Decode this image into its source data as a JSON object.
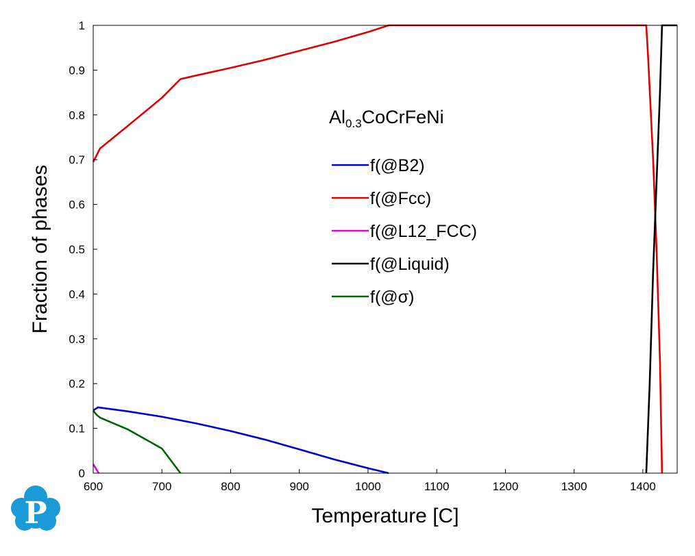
{
  "chart_data": {
    "type": "line",
    "xlabel": "Temperature [C]",
    "ylabel": "Fraction of phases",
    "xlim": [
      600,
      1450
    ],
    "ylim": [
      0,
      1
    ],
    "x_ticks": [
      "600",
      "700",
      "800",
      "900",
      "1000",
      "1100",
      "1200",
      "1300",
      "1400"
    ],
    "y_ticks": [
      "0",
      "0.1",
      "0.2",
      "0.3",
      "0.4",
      "0.5",
      "0.6",
      "0.7",
      "0.8",
      "0.9",
      "1"
    ],
    "grid": false,
    "legend_position": "center",
    "annotation": {
      "prefix": "Al",
      "subscript": "0.3",
      "suffix": "CoCrFeNi"
    },
    "series": [
      {
        "name": "f(@B2)",
        "color": "#0000dd",
        "points": [
          [
            600,
            0.14
          ],
          [
            605,
            0.145
          ],
          [
            607,
            0.147
          ],
          [
            650,
            0.138
          ],
          [
            700,
            0.126
          ],
          [
            750,
            0.111
          ],
          [
            800,
            0.094
          ],
          [
            850,
            0.075
          ],
          [
            900,
            0.053
          ],
          [
            950,
            0.031
          ],
          [
            1000,
            0.011
          ],
          [
            1030,
            0.0
          ]
        ]
      },
      {
        "name": "f(@Fcc)",
        "color": "#e00000",
        "points": [
          [
            600,
            0.695
          ],
          [
            605,
            0.71
          ],
          [
            610,
            0.725
          ],
          [
            650,
            0.775
          ],
          [
            700,
            0.838
          ],
          [
            727,
            0.88
          ],
          [
            750,
            0.888
          ],
          [
            800,
            0.905
          ],
          [
            850,
            0.923
          ],
          [
            900,
            0.943
          ],
          [
            950,
            0.963
          ],
          [
            1000,
            0.985
          ],
          [
            1030,
            1.0
          ],
          [
            1405,
            1.0
          ],
          [
            1408,
            0.92
          ],
          [
            1415,
            0.7
          ],
          [
            1420,
            0.5
          ],
          [
            1425,
            0.25
          ],
          [
            1428,
            0.0
          ]
        ]
      },
      {
        "name": "f(@L12_FCC)",
        "color": "#e000e0",
        "points": [
          [
            600,
            0.02
          ],
          [
            608,
            0.0
          ]
        ]
      },
      {
        "name": "f(@Liquid)",
        "color": "#000000",
        "points": [
          [
            1405,
            0.0
          ],
          [
            1410,
            0.2
          ],
          [
            1415,
            0.45
          ],
          [
            1420,
            0.65
          ],
          [
            1425,
            0.85
          ],
          [
            1428,
            1.0
          ],
          [
            1450,
            1.0
          ]
        ]
      },
      {
        "name": "f(@σ)",
        "color": "#006400",
        "points": [
          [
            600,
            0.14
          ],
          [
            605,
            0.13
          ],
          [
            610,
            0.124
          ],
          [
            650,
            0.098
          ],
          [
            700,
            0.055
          ],
          [
            727,
            0.0
          ]
        ]
      }
    ]
  },
  "logo": {
    "letter": "P",
    "color": "#1a9ad6"
  }
}
